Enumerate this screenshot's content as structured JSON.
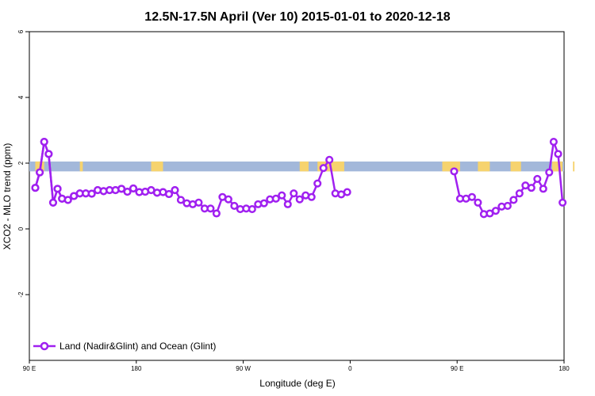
{
  "chart_data": {
    "type": "line",
    "title": "12.5N-17.5N April (Ver 10)   2015-01-01 to 2020-12-18",
    "xlabel": "Longitude (deg E)",
    "ylabel": "XCO2 - MLO trend (ppm)",
    "xlim": [
      90,
      450
    ],
    "ylim": [
      -4,
      6
    ],
    "x_ticks": [
      90,
      180,
      270,
      360,
      450
    ],
    "x_tick_labels": [
      "90 E",
      "180",
      "90 W",
      "0",
      "90 E",
      "180"
    ],
    "x_tick_positions": [
      90,
      180,
      270,
      360,
      450,
      540
    ],
    "y_ticks": [
      6,
      4,
      2,
      0,
      -2
    ],
    "y_tick_labels": [
      "6",
      "4",
      "2",
      "0",
      "-2"
    ],
    "legend": {
      "position": "bottom-left"
    },
    "land_ocean_band": {
      "y_range": [
        1.75,
        2.05
      ],
      "ocean_color": "#a3b8da",
      "land_color": "#f6d36e",
      "land_segments": [
        [
          94,
          100
        ],
        [
          124,
          126
        ],
        [
          172,
          180
        ],
        [
          272,
          278
        ],
        [
          284,
          302
        ],
        [
          368,
          380
        ],
        [
          392,
          400
        ],
        [
          414,
          421
        ],
        [
          442,
          449
        ],
        [
          456,
          457
        ]
      ]
    },
    "series": [
      {
        "name": "Land (Nadir&Glint) and Ocean (Glint)",
        "color": "#a020f0",
        "points": [
          [
            [
              94,
              1.25
            ],
            [
              97,
              1.72
            ],
            [
              100,
              2.65
            ],
            [
              103,
              2.28
            ],
            [
              106,
              0.8
            ],
            [
              109,
              1.22
            ],
            [
              112,
              0.92
            ],
            [
              116,
              0.88
            ],
            [
              120,
              1.0
            ],
            [
              124,
              1.08
            ],
            [
              128,
              1.08
            ],
            [
              132,
              1.07
            ],
            [
              136,
              1.18
            ],
            [
              140,
              1.15
            ],
            [
              144,
              1.18
            ],
            [
              148,
              1.18
            ],
            [
              152,
              1.22
            ],
            [
              156,
              1.13
            ],
            [
              160,
              1.23
            ],
            [
              164,
              1.12
            ],
            [
              168,
              1.13
            ],
            [
              172,
              1.18
            ],
            [
              176,
              1.1
            ],
            [
              180,
              1.12
            ],
            [
              184,
              1.06
            ],
            [
              188,
              1.18
            ],
            [
              192,
              0.88
            ],
            [
              196,
              0.78
            ],
            [
              200,
              0.75
            ],
            [
              204,
              0.8
            ],
            [
              208,
              0.62
            ],
            [
              212,
              0.62
            ],
            [
              216,
              0.47
            ],
            [
              220,
              0.97
            ],
            [
              224,
              0.9
            ],
            [
              228,
              0.7
            ],
            [
              232,
              0.6
            ],
            [
              236,
              0.62
            ],
            [
              240,
              0.6
            ],
            [
              244,
              0.75
            ],
            [
              248,
              0.78
            ],
            [
              252,
              0.9
            ],
            [
              256,
              0.92
            ],
            [
              260,
              1.02
            ],
            [
              264,
              0.75
            ],
            [
              268,
              1.08
            ],
            [
              272,
              0.9
            ],
            [
              276,
              1.02
            ],
            [
              280,
              0.97
            ],
            [
              284,
              1.38
            ],
            [
              288,
              1.85
            ],
            [
              292,
              2.1
            ],
            [
              296,
              1.08
            ],
            [
              300,
              1.05
            ],
            [
              304,
              1.12
            ]
          ],
          [
            [
              376,
              1.75
            ],
            [
              380,
              0.92
            ],
            [
              384,
              0.92
            ],
            [
              388,
              0.97
            ],
            [
              392,
              0.8
            ],
            [
              396,
              0.45
            ],
            [
              400,
              0.47
            ],
            [
              404,
              0.55
            ],
            [
              408,
              0.68
            ],
            [
              412,
              0.7
            ],
            [
              416,
              0.88
            ],
            [
              420,
              1.08
            ],
            [
              424,
              1.32
            ],
            [
              428,
              1.25
            ],
            [
              432,
              1.52
            ],
            [
              436,
              1.22
            ],
            [
              440,
              1.72
            ],
            [
              443,
              2.65
            ],
            [
              446,
              2.28
            ],
            [
              449,
              0.8
            ]
          ],
          [
            [
              94,
              1.25
            ],
            [
              97,
              1.72
            ],
            [
              100,
              2.65
            ],
            [
              103,
              2.28
            ],
            [
              106,
              0.8
            ],
            [
              109,
              1.22
            ],
            [
              112,
              0.92
            ],
            [
              116,
              0.88
            ],
            [
              120,
              1.0
            ],
            [
              124,
              1.08
            ],
            [
              128,
              1.08
            ],
            [
              132,
              1.07
            ],
            [
              136,
              1.18
            ],
            [
              140,
              1.15
            ],
            [
              144,
              1.18
            ],
            [
              148,
              1.18
            ],
            [
              152,
              1.22
            ],
            [
              156,
              1.13
            ],
            [
              160,
              1.23
            ],
            [
              164,
              1.12
            ],
            [
              168,
              1.13
            ],
            [
              172,
              1.18
            ],
            [
              176,
              1.1
            ],
            [
              180,
              1.12
            ],
            [
              184,
              1.06
            ],
            [
              188,
              1.18
            ]
          ]
        ]
      }
    ]
  }
}
